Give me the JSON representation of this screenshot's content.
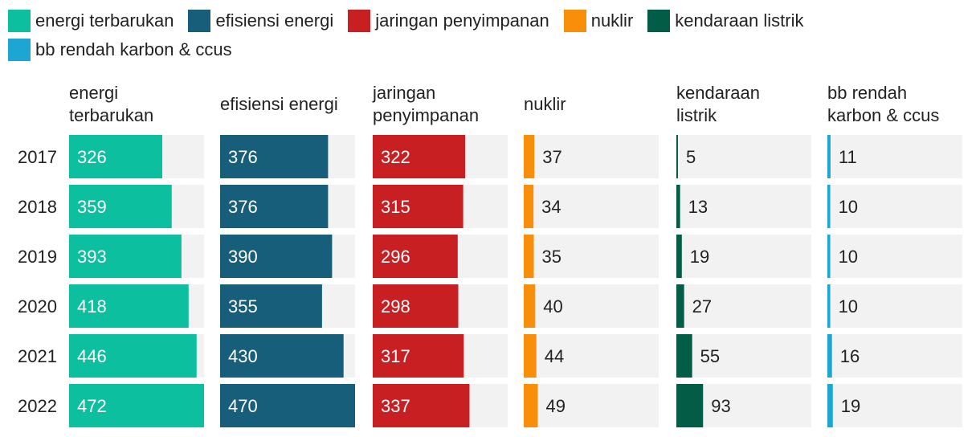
{
  "chart_data": {
    "type": "bar",
    "categories": [
      "2017",
      "2018",
      "2019",
      "2020",
      "2021",
      "2022"
    ],
    "series": [
      {
        "name": "energi terbarukan",
        "title": "energi terbarukan",
        "color": "#0bbf9f",
        "values": [
          326,
          359,
          393,
          418,
          446,
          472
        ],
        "max": 472
      },
      {
        "name": "efisiensi energi",
        "title": "efisiensi energi",
        "color": "#175e7a",
        "values": [
          376,
          376,
          390,
          355,
          430,
          470
        ],
        "max": 470
      },
      {
        "name": "jaringan penyimpanan",
        "title": "jaringan penyimpanan",
        "color": "#c81f22",
        "values": [
          322,
          315,
          296,
          298,
          317,
          337
        ],
        "max": 470
      },
      {
        "name": "nuklir",
        "title": "nuklir",
        "color": "#f98e0b",
        "values": [
          37,
          34,
          35,
          40,
          44,
          49
        ],
        "max": 470
      },
      {
        "name": "kendaraan listrik",
        "title": "kendaraan listrik",
        "color": "#035c45",
        "values": [
          5,
          13,
          19,
          27,
          55,
          93
        ],
        "max": 470
      },
      {
        "name": "bb rendah karbon & ccus",
        "title": "bb rendah karbon & ccus",
        "color": "#1da5d3",
        "values": [
          11,
          10,
          10,
          10,
          16,
          19
        ],
        "max": 470
      }
    ],
    "legend_position": "top",
    "grid": false
  }
}
